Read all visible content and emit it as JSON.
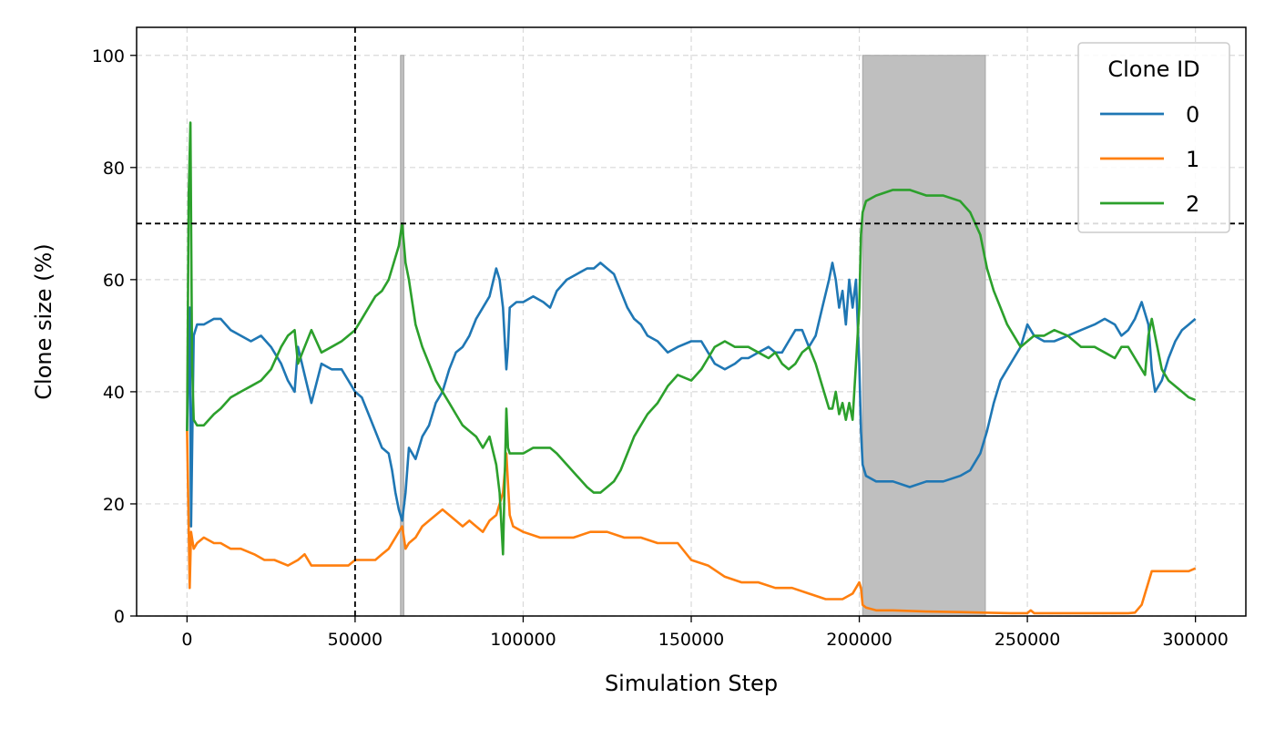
{
  "chart_data": {
    "type": "line",
    "title": "",
    "xlabel": "Simulation Step",
    "ylabel": "Clone size (%)",
    "xlim": [
      -15000,
      315000
    ],
    "ylim": [
      0,
      105
    ],
    "xticks": [
      0,
      50000,
      100000,
      150000,
      200000,
      250000,
      300000
    ],
    "xtick_labels": [
      "0",
      "50000",
      "100000",
      "150000",
      "200000",
      "250000",
      "300000"
    ],
    "yticks": [
      0,
      20,
      40,
      60,
      80,
      100
    ],
    "ytick_labels": [
      "0",
      "20",
      "40",
      "60",
      "80",
      "100"
    ],
    "grid": true,
    "legend": {
      "title": "Clone ID",
      "position": "top-right"
    },
    "reference_lines": [
      {
        "orientation": "vertical",
        "x": 50000,
        "style": "dashed",
        "color": "#000000"
      },
      {
        "orientation": "horizontal",
        "y": 70,
        "style": "dashed",
        "color": "#000000"
      }
    ],
    "shaded_regions": [
      {
        "x_start": 63500,
        "x_end": 64500,
        "y_max": 100,
        "color": "#bfbfbf"
      },
      {
        "x_start": 201000,
        "x_end": 237500,
        "y_max": 100,
        "color": "#bfbfbf"
      }
    ],
    "series": [
      {
        "name": "0",
        "color": "#1f77b4",
        "x": [
          0,
          800,
          1200,
          2000,
          3000,
          5000,
          8000,
          10000,
          13000,
          16000,
          19000,
          22000,
          25000,
          28000,
          30000,
          32000,
          33000,
          35000,
          37000,
          40000,
          43000,
          46000,
          48000,
          50000,
          52000,
          54000,
          56000,
          58000,
          60000,
          61000,
          62000,
          63000,
          64000,
          65000,
          66000,
          68000,
          70000,
          72000,
          74000,
          76000,
          78000,
          80000,
          82000,
          84000,
          86000,
          88000,
          90000,
          92000,
          93000,
          94000,
          95000,
          95500,
          96000,
          98000,
          100000,
          103000,
          106000,
          108000,
          110000,
          113000,
          116000,
          119000,
          121000,
          123000,
          125000,
          127000,
          129000,
          131000,
          133000,
          135000,
          137000,
          140000,
          143000,
          146000,
          150000,
          153000,
          155000,
          157000,
          160000,
          163000,
          165000,
          167000,
          170000,
          173000,
          175000,
          177000,
          179000,
          181000,
          183000,
          185000,
          187000,
          189000,
          191000,
          192000,
          193000,
          194000,
          195000,
          196000,
          197000,
          198000,
          199000,
          200000,
          200500,
          201000,
          202000,
          205000,
          210000,
          215000,
          220000,
          225000,
          230000,
          233000,
          236000,
          238000,
          240000,
          242000,
          244000,
          246000,
          248000,
          250000,
          252000,
          255000,
          258000,
          262000,
          266000,
          270000,
          273000,
          276000,
          278000,
          280000,
          282000,
          284000,
          285000,
          286000,
          287000,
          288000,
          290000,
          292000,
          294000,
          296000,
          298000,
          300000
        ],
        "values": [
          33,
          55,
          16,
          50,
          52,
          52,
          53,
          53,
          51,
          50,
          49,
          50,
          48,
          45,
          42,
          40,
          48,
          43,
          38,
          45,
          44,
          44,
          42,
          40,
          39,
          36,
          33,
          30,
          29,
          26,
          22,
          19,
          17,
          22,
          30,
          28,
          32,
          34,
          38,
          40,
          44,
          47,
          48,
          50,
          53,
          55,
          57,
          62,
          60,
          55,
          44,
          48,
          55,
          56,
          56,
          57,
          56,
          55,
          58,
          60,
          61,
          62,
          62,
          63,
          62,
          61,
          58,
          55,
          53,
          52,
          50,
          49,
          47,
          48,
          49,
          49,
          47,
          45,
          44,
          45,
          46,
          46,
          47,
          48,
          47,
          47,
          49,
          51,
          51,
          48,
          50,
          55,
          60,
          63,
          60,
          55,
          58,
          52,
          60,
          55,
          60,
          45,
          33,
          27,
          25,
          24,
          24,
          23,
          24,
          24,
          25,
          26,
          29,
          33,
          38,
          42,
          44,
          46,
          48,
          52,
          50,
          49,
          49,
          50,
          51,
          52,
          53,
          52,
          50,
          51,
          53,
          56,
          54,
          52,
          44,
          40,
          42,
          46,
          49,
          51,
          52,
          53
        ]
      },
      {
        "name": "1",
        "color": "#ff7f0e",
        "x": [
          0,
          800,
          1200,
          2000,
          3000,
          5000,
          8000,
          10000,
          13000,
          16000,
          20000,
          23000,
          26000,
          30000,
          33000,
          35000,
          37000,
          40000,
          43000,
          46000,
          48000,
          50000,
          53000,
          56000,
          58000,
          60000,
          62000,
          64000,
          65000,
          66000,
          68000,
          70000,
          72000,
          74000,
          76000,
          78000,
          80000,
          82000,
          84000,
          86000,
          88000,
          90000,
          92000,
          93000,
          94000,
          95000,
          96000,
          97000,
          100000,
          105000,
          110000,
          115000,
          120000,
          125000,
          130000,
          135000,
          140000,
          143000,
          146000,
          150000,
          155000,
          160000,
          165000,
          170000,
          175000,
          180000,
          185000,
          190000,
          195000,
          198000,
          200000,
          200500,
          201000,
          202000,
          205000,
          210000,
          220000,
          230000,
          237000,
          245000,
          250000,
          251000,
          252000,
          260000,
          270000,
          280000,
          282000,
          284000,
          285000,
          286000,
          287000,
          288000,
          290000,
          294000,
          298000,
          300000
        ],
        "values": [
          33,
          5,
          15,
          12,
          13,
          14,
          13,
          13,
          12,
          12,
          11,
          10,
          10,
          9,
          10,
          11,
          9,
          9,
          9,
          9,
          9,
          10,
          10,
          10,
          11,
          12,
          14,
          16,
          12,
          13,
          14,
          16,
          17,
          18,
          19,
          18,
          17,
          16,
          17,
          16,
          15,
          17,
          18,
          20,
          22,
          29,
          18,
          16,
          15,
          14,
          14,
          14,
          15,
          15,
          14,
          14,
          13,
          13,
          13,
          10,
          9,
          7,
          6,
          6,
          5,
          5,
          4,
          3,
          3,
          4,
          6,
          5,
          2,
          1.5,
          1,
          1,
          0.8,
          0.7,
          0.6,
          0.5,
          0.5,
          1,
          0.5,
          0.5,
          0.5,
          0.5,
          0.6,
          2,
          4,
          6,
          8,
          8,
          8,
          8,
          8,
          8.5
        ]
      },
      {
        "name": "2",
        "color": "#2ca02c",
        "x": [
          0,
          500,
          1000,
          1500,
          2000,
          3000,
          5000,
          8000,
          10000,
          13000,
          16000,
          19000,
          22000,
          25000,
          28000,
          30000,
          32000,
          33000,
          35000,
          37000,
          40000,
          43000,
          46000,
          48000,
          50000,
          52000,
          54000,
          56000,
          58000,
          60000,
          61000,
          62000,
          63000,
          64000,
          65000,
          66000,
          68000,
          70000,
          72000,
          74000,
          76000,
          78000,
          80000,
          82000,
          84000,
          86000,
          88000,
          90000,
          92000,
          93000,
          94000,
          95000,
          95500,
          96000,
          98000,
          100000,
          103000,
          106000,
          108000,
          110000,
          113000,
          116000,
          119000,
          121000,
          123000,
          125000,
          127000,
          129000,
          131000,
          133000,
          135000,
          137000,
          140000,
          143000,
          146000,
          150000,
          153000,
          155000,
          157000,
          160000,
          163000,
          165000,
          167000,
          170000,
          173000,
          175000,
          177000,
          179000,
          181000,
          183000,
          185000,
          187000,
          189000,
          191000,
          192000,
          193000,
          194000,
          195000,
          196000,
          197000,
          198000,
          199000,
          200000,
          200500,
          201000,
          202000,
          205000,
          210000,
          215000,
          220000,
          225000,
          230000,
          233000,
          236000,
          238000,
          240000,
          242000,
          244000,
          246000,
          248000,
          250000,
          252000,
          255000,
          258000,
          262000,
          266000,
          270000,
          273000,
          276000,
          278000,
          280000,
          282000,
          284000,
          285000,
          286000,
          287000,
          288000,
          290000,
          292000,
          294000,
          296000,
          298000,
          300000
        ],
        "values": [
          33,
          75,
          88,
          45,
          35,
          34,
          34,
          36,
          37,
          39,
          40,
          41,
          42,
          44,
          48,
          50,
          51,
          45,
          48,
          51,
          47,
          48,
          49,
          50,
          51,
          53,
          55,
          57,
          58,
          60,
          62,
          64,
          66,
          70,
          63,
          60,
          52,
          48,
          45,
          42,
          40,
          38,
          36,
          34,
          33,
          32,
          30,
          32,
          27,
          22,
          11,
          37,
          30,
          29,
          29,
          29,
          30,
          30,
          30,
          29,
          27,
          25,
          23,
          22,
          22,
          23,
          24,
          26,
          29,
          32,
          34,
          36,
          38,
          41,
          43,
          42,
          44,
          46,
          48,
          49,
          48,
          48,
          48,
          47,
          46,
          47,
          45,
          44,
          45,
          47,
          48,
          45,
          41,
          37,
          37,
          40,
          36,
          38,
          35,
          38,
          35,
          45,
          55,
          68,
          72,
          74,
          75,
          76,
          76,
          75,
          75,
          74,
          72,
          68,
          62,
          58,
          55,
          52,
          50,
          48,
          49,
          50,
          50,
          51,
          50,
          48,
          48,
          47,
          46,
          48,
          48,
          46,
          44,
          43,
          50,
          53,
          50,
          44,
          42,
          41,
          40,
          39,
          38.5
        ]
      }
    ]
  }
}
